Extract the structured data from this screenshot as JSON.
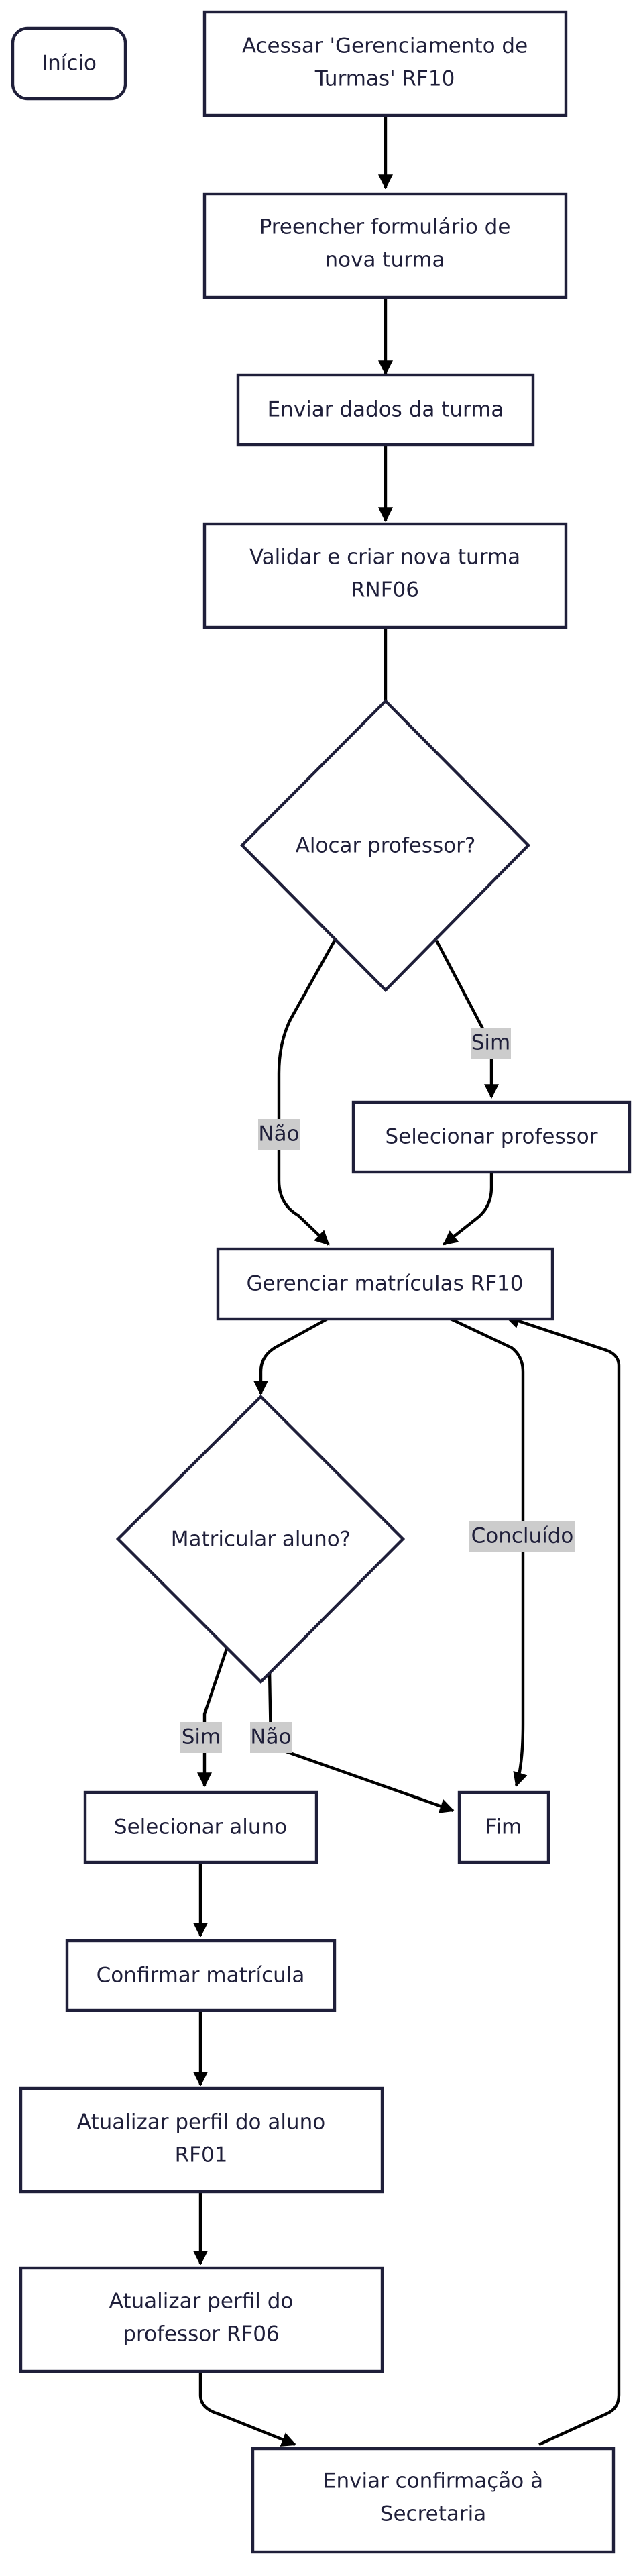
{
  "nodes": {
    "inicio": {
      "label": "Início"
    },
    "acessar": {
      "line1": "Acessar 'Gerenciamento de",
      "line2": "Turmas' RF10"
    },
    "preencher": {
      "line1": "Preencher formulário de",
      "line2": "nova turma"
    },
    "enviar_dados": {
      "label": "Enviar dados da turma"
    },
    "validar": {
      "line1": "Validar e criar nova turma",
      "line2": "RNF06"
    },
    "alocar": {
      "label": "Alocar professor?"
    },
    "selecionar_professor": {
      "label": "Selecionar professor"
    },
    "gerenciar": {
      "label": "Gerenciar matrículas RF10"
    },
    "matricular": {
      "label": "Matricular aluno?"
    },
    "selecionar_aluno": {
      "label": "Selecionar aluno"
    },
    "fim": {
      "label": "Fim"
    },
    "confirmar": {
      "label": "Confirmar matrícula"
    },
    "atualizar_aluno": {
      "line1": "Atualizar perfil do aluno",
      "line2": "RF01"
    },
    "atualizar_professor": {
      "line1": "Atualizar perfil do",
      "line2": "professor RF06"
    },
    "enviar_confirmacao": {
      "line1": "Enviar confirmação à",
      "line2": "Secretaria"
    }
  },
  "edge_labels": {
    "sim_professor": "Sim",
    "nao_professor": "Não",
    "concluido": "Concluído",
    "sim_aluno": "Sim",
    "nao_aluno": "Não"
  }
}
